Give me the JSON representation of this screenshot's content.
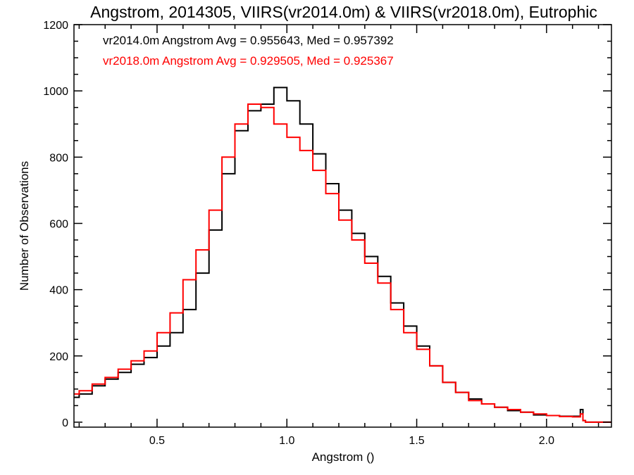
{
  "chart_data": {
    "type": "line",
    "title": "Angstrom, 2014305, VIIRS(vr2014.0m) & VIIRS(vr2018.0m), Eutrophic",
    "xlabel": "Angstrom ()",
    "ylabel": "Number of Observations",
    "xlim": [
      0.18,
      2.25
    ],
    "ylim": [
      -15,
      1200
    ],
    "xticks": [
      0.5,
      1.0,
      1.5,
      2.0
    ],
    "xtick_labels": [
      "0.5",
      "1.0",
      "1.5",
      "2.0"
    ],
    "yticks": [
      0,
      200,
      400,
      600,
      800,
      1000,
      1200
    ],
    "ytick_labels": [
      "0",
      "200",
      "400",
      "600",
      "800",
      "1000",
      "1200"
    ],
    "grid": false,
    "step": "histogram",
    "annotations": [
      {
        "text": "vr2014.0m Angstrom Avg = 0.955643, Med = 0.957392",
        "color": "#000000"
      },
      {
        "text": "vr2018.0m Angstrom Avg = 0.929505, Med = 0.925367",
        "color": "#ff0000"
      }
    ],
    "x": [
      0.18,
      0.2,
      0.25,
      0.3,
      0.35,
      0.4,
      0.45,
      0.5,
      0.55,
      0.6,
      0.65,
      0.7,
      0.75,
      0.8,
      0.85,
      0.9,
      0.95,
      1.0,
      1.05,
      1.1,
      1.15,
      1.2,
      1.25,
      1.3,
      1.35,
      1.4,
      1.45,
      1.5,
      1.55,
      1.6,
      1.65,
      1.7,
      1.75,
      1.8,
      1.85,
      1.9,
      1.95,
      2.0,
      2.05,
      2.1,
      2.13,
      2.14,
      2.15,
      2.2,
      2.25
    ],
    "series": [
      {
        "name": "vr2014.0m",
        "color": "#000000",
        "values": [
          75,
          85,
          110,
          130,
          150,
          175,
          195,
          230,
          270,
          340,
          450,
          580,
          750,
          880,
          940,
          960,
          1010,
          970,
          900,
          810,
          720,
          640,
          570,
          500,
          440,
          360,
          290,
          230,
          170,
          120,
          90,
          70,
          55,
          45,
          35,
          30,
          22,
          20,
          18,
          18,
          38,
          5,
          0,
          0,
          0
        ]
      },
      {
        "name": "vr2018.0m",
        "color": "#ff0000",
        "values": [
          85,
          95,
          115,
          135,
          160,
          185,
          215,
          270,
          330,
          430,
          520,
          640,
          800,
          900,
          960,
          950,
          900,
          860,
          820,
          760,
          690,
          610,
          550,
          480,
          420,
          340,
          270,
          220,
          170,
          120,
          90,
          65,
          55,
          45,
          38,
          30,
          25,
          20,
          17,
          16,
          25,
          5,
          0,
          0,
          0
        ]
      }
    ]
  }
}
